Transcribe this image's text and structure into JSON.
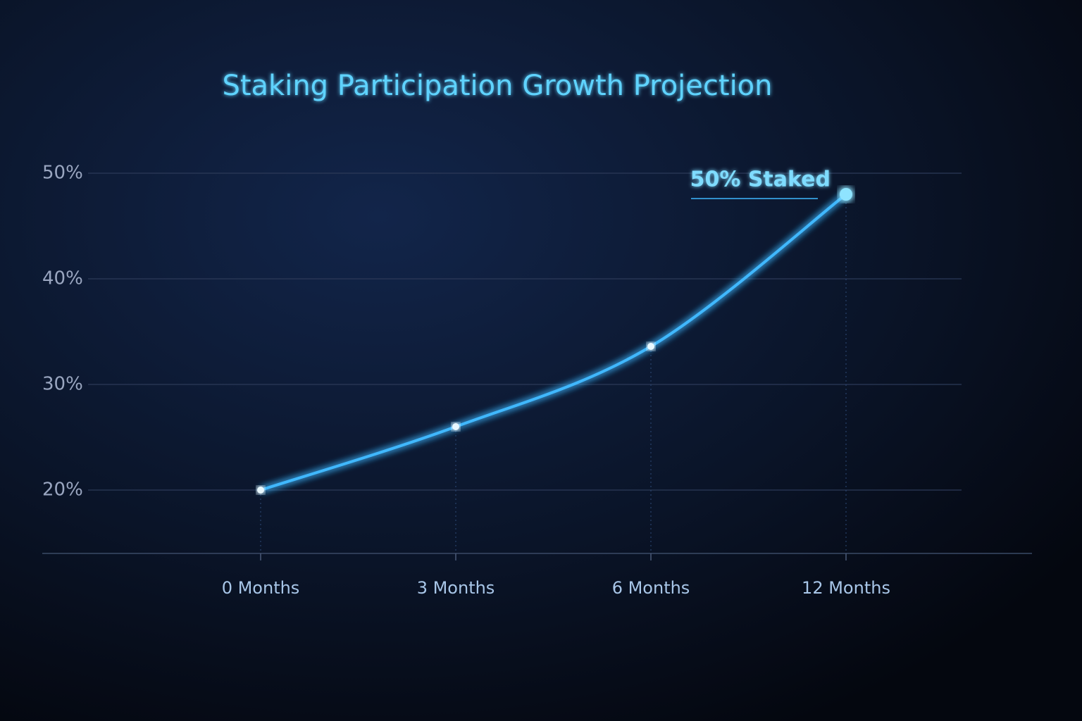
{
  "chart_data": {
    "type": "line",
    "title": "Staking Participation Growth Projection",
    "categories": [
      "0 Months",
      "3 Months",
      "6 Months",
      "12 Months"
    ],
    "values": [
      20,
      26,
      33.6,
      48
    ],
    "annotation": "50% Staked",
    "color": "#3fb8ff",
    "ylim": [
      14,
      55
    ],
    "yticks": [
      {
        "value": 20,
        "label": "20%"
      },
      {
        "value": 30,
        "label": "30%"
      },
      {
        "value": 40,
        "label": "40%"
      },
      {
        "value": 50,
        "label": "50%"
      }
    ],
    "grid": true
  }
}
